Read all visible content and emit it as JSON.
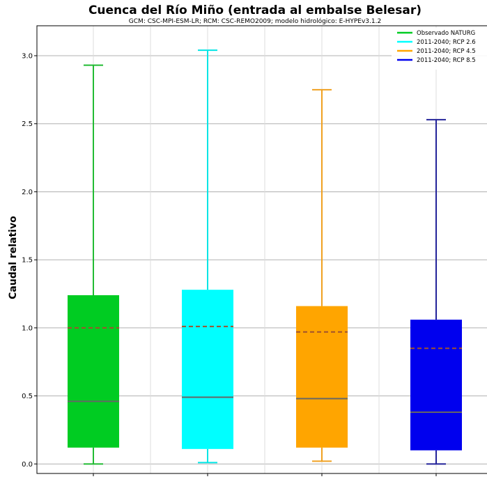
{
  "chart_data": {
    "type": "box",
    "title": "Cuenca del Río Miño (entrada al embalse Belesar)",
    "subtitle": "GCM: CSC-MPI-ESM-LR; RCM: CSC-REMO2009; modelo hidrológico: E-HYPEv3.1.2",
    "xlabel": "",
    "ylabel": "Caudal relativo",
    "ylim": [
      -0.07,
      3.22
    ],
    "yticks": [
      "0.0",
      "0.5",
      "1.0",
      "1.5",
      "2.0",
      "2.5",
      "3.0"
    ],
    "grid": true,
    "legend_position": "top-right",
    "series": [
      {
        "name": "Observado NATURG",
        "color": "#00cc22",
        "whisker_color": "#22bb33",
        "min": 0.0,
        "q1": 0.12,
        "median": 0.46,
        "mean": 1.0,
        "q3": 1.24,
        "max": 2.93
      },
      {
        "name": "2011-2040; RCP 2.6",
        "color": "#00ffff",
        "whisker_color": "#00e5e5",
        "min": 0.01,
        "q1": 0.11,
        "median": 0.49,
        "mean": 1.01,
        "q3": 1.28,
        "max": 3.04
      },
      {
        "name": "2011-2040; RCP 4.5",
        "color": "#ffa500",
        "whisker_color": "#f0a020",
        "min": 0.02,
        "q1": 0.12,
        "median": 0.48,
        "mean": 0.97,
        "q3": 1.16,
        "max": 2.75
      },
      {
        "name": "2011-2040; RCP 8.5",
        "color": "#0000ee",
        "whisker_color": "#222299",
        "min": 0.0,
        "q1": 0.1,
        "median": 0.38,
        "mean": 0.85,
        "q3": 1.06,
        "max": 2.53
      }
    ]
  }
}
